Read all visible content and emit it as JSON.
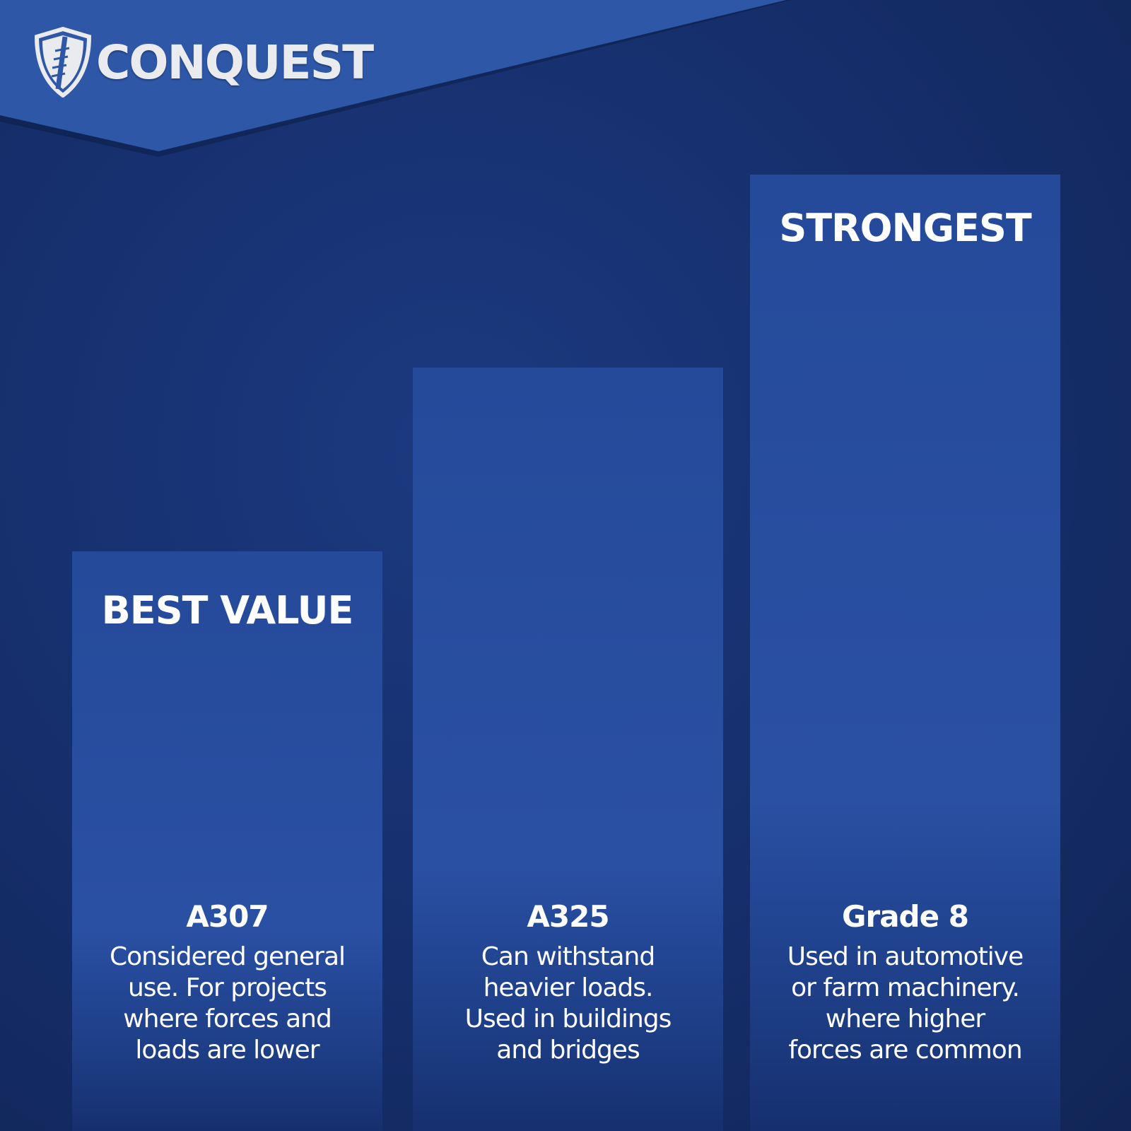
{
  "brand": {
    "name": "CONQUEST",
    "colors": {
      "header": "#2f57a8",
      "background": "#16306e",
      "bar": "#2a50a4",
      "text": "#ffffff"
    }
  },
  "bolts": [
    {
      "tag": "BEST VALUE",
      "name": "A307",
      "description": [
        "Considered general",
        "use. For projects",
        "where forces and",
        "loads are lower"
      ]
    },
    {
      "tag": "",
      "name": "A325",
      "description": [
        "Can withstand",
        "heavier loads.",
        "Used in buildings",
        "and bridges"
      ]
    },
    {
      "tag": "STRONGEST",
      "name": "Grade 8",
      "description": [
        "Used in automotive",
        "or farm machinery.",
        "where higher",
        "forces are common"
      ]
    }
  ]
}
